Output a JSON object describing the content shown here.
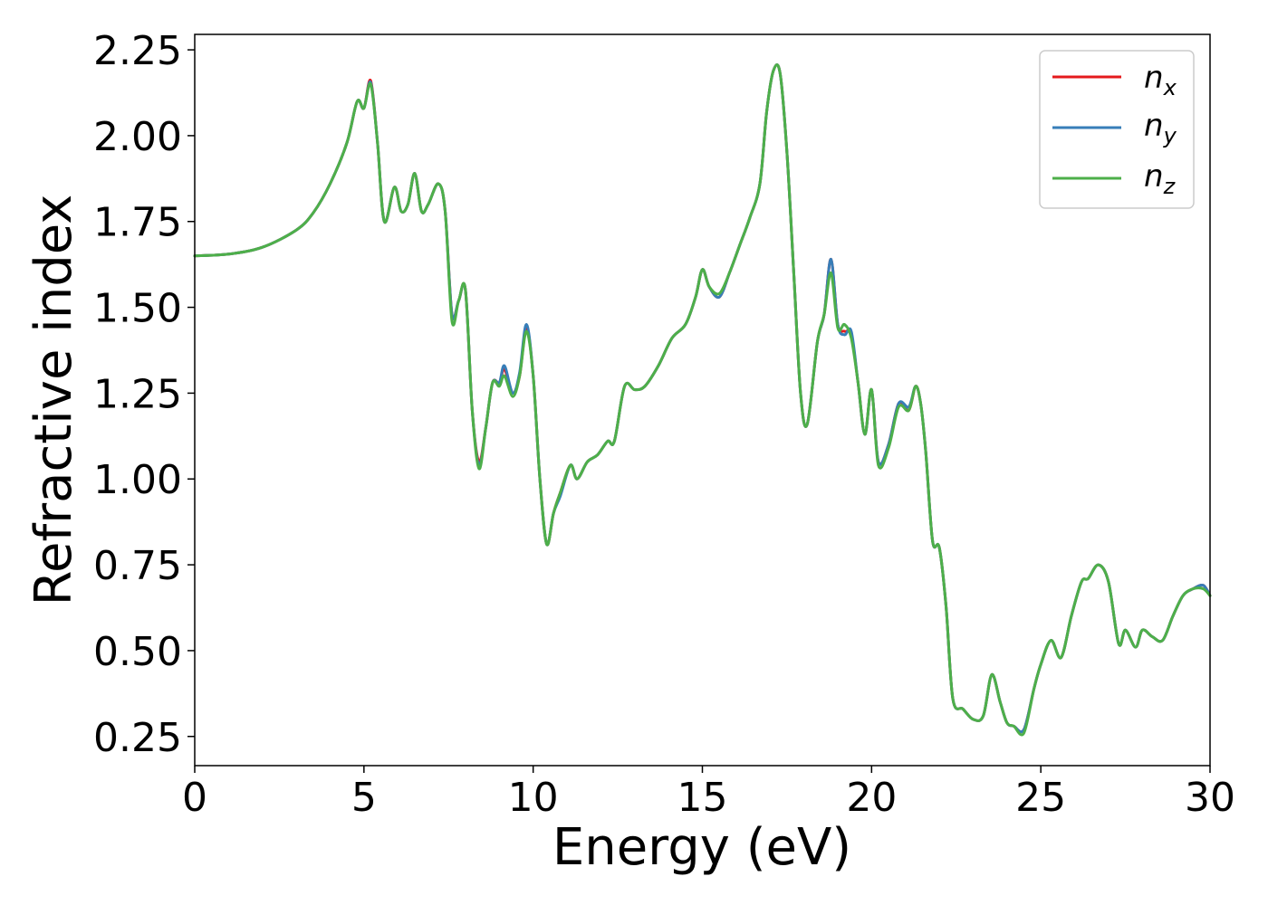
{
  "chart_data": {
    "type": "line",
    "xlabel": "Energy (eV)",
    "ylabel": "Refractive index",
    "xlim": [
      0,
      30
    ],
    "ylim": [
      0.165,
      2.295
    ],
    "xticks": [
      0,
      5,
      10,
      15,
      20,
      25,
      30
    ],
    "xtick_labels": [
      "0",
      "5",
      "10",
      "15",
      "20",
      "25",
      "30"
    ],
    "yticks": [
      0.25,
      0.5,
      0.75,
      1.0,
      1.25,
      1.5,
      1.75,
      2.0,
      2.25
    ],
    "ytick_labels": [
      "0.25",
      "0.50",
      "0.75",
      "1.00",
      "1.25",
      "1.50",
      "1.75",
      "2.00",
      "2.25"
    ],
    "grid": false,
    "legend_position": "top-right",
    "x": [
      0,
      1,
      2,
      3,
      3.5,
      4,
      4.5,
      4.8,
      5.0,
      5.2,
      5.4,
      5.6,
      5.9,
      6.1,
      6.3,
      6.5,
      6.7,
      6.9,
      7.2,
      7.4,
      7.6,
      7.8,
      8.0,
      8.2,
      8.4,
      8.6,
      8.8,
      9.0,
      9.15,
      9.4,
      9.6,
      9.8,
      10.0,
      10.2,
      10.4,
      10.6,
      10.8,
      11.1,
      11.3,
      11.6,
      11.9,
      12.2,
      12.4,
      12.7,
      13.0,
      13.3,
      13.7,
      14.1,
      14.5,
      14.8,
      15.0,
      15.2,
      15.5,
      15.8,
      16.1,
      16.4,
      16.7,
      16.9,
      17.1,
      17.3,
      17.5,
      17.7,
      17.9,
      18.1,
      18.4,
      18.6,
      18.8,
      19.0,
      19.2,
      19.4,
      19.6,
      19.8,
      20.0,
      20.2,
      20.5,
      20.8,
      21.1,
      21.3,
      21.45,
      21.6,
      21.8,
      22.0,
      22.2,
      22.4,
      22.7,
      23.0,
      23.3,
      23.55,
      23.8,
      24.0,
      24.2,
      24.5,
      24.8,
      25.0,
      25.3,
      25.6,
      25.9,
      26.2,
      26.4,
      26.7,
      27.0,
      27.3,
      27.5,
      27.8,
      28.0,
      28.3,
      28.6,
      28.9,
      29.2,
      29.5,
      29.8,
      30
    ],
    "series": [
      {
        "name": "n_x",
        "color": "#e41a1c",
        "values": [
          1.65,
          1.655,
          1.675,
          1.725,
          1.775,
          1.86,
          1.98,
          2.1,
          2.08,
          2.16,
          1.98,
          1.75,
          1.85,
          1.78,
          1.8,
          1.89,
          1.78,
          1.8,
          1.86,
          1.78,
          1.48,
          1.52,
          1.55,
          1.2,
          1.05,
          1.15,
          1.28,
          1.28,
          1.32,
          1.25,
          1.3,
          1.44,
          1.3,
          1.0,
          0.81,
          0.9,
          0.96,
          1.04,
          1.0,
          1.05,
          1.07,
          1.11,
          1.11,
          1.27,
          1.26,
          1.27,
          1.33,
          1.41,
          1.45,
          1.53,
          1.61,
          1.56,
          1.53,
          1.6,
          1.68,
          1.76,
          1.86,
          2.07,
          2.19,
          2.18,
          1.95,
          1.6,
          1.25,
          1.16,
          1.4,
          1.48,
          1.64,
          1.45,
          1.43,
          1.42,
          1.28,
          1.13,
          1.26,
          1.05,
          1.1,
          1.22,
          1.2,
          1.27,
          1.22,
          1.08,
          0.82,
          0.8,
          0.63,
          0.36,
          0.33,
          0.3,
          0.31,
          0.43,
          0.35,
          0.29,
          0.28,
          0.27,
          0.39,
          0.46,
          0.53,
          0.48,
          0.6,
          0.7,
          0.71,
          0.75,
          0.7,
          0.52,
          0.56,
          0.51,
          0.56,
          0.54,
          0.53,
          0.6,
          0.66,
          0.68,
          0.69,
          0.66
        ]
      },
      {
        "name": "n_y",
        "color": "#377eb8",
        "values": [
          1.65,
          1.655,
          1.675,
          1.725,
          1.775,
          1.86,
          1.98,
          2.1,
          2.08,
          2.155,
          1.98,
          1.75,
          1.85,
          1.78,
          1.8,
          1.89,
          1.78,
          1.8,
          1.86,
          1.78,
          1.48,
          1.52,
          1.55,
          1.2,
          1.04,
          1.15,
          1.28,
          1.28,
          1.33,
          1.25,
          1.31,
          1.45,
          1.3,
          1.0,
          0.81,
          0.9,
          0.95,
          1.04,
          1.0,
          1.05,
          1.07,
          1.11,
          1.11,
          1.27,
          1.26,
          1.27,
          1.33,
          1.41,
          1.45,
          1.53,
          1.61,
          1.56,
          1.53,
          1.6,
          1.68,
          1.76,
          1.86,
          2.07,
          2.19,
          2.18,
          1.95,
          1.6,
          1.25,
          1.16,
          1.4,
          1.48,
          1.64,
          1.45,
          1.42,
          1.43,
          1.28,
          1.13,
          1.26,
          1.05,
          1.1,
          1.22,
          1.21,
          1.27,
          1.22,
          1.08,
          0.82,
          0.8,
          0.63,
          0.36,
          0.33,
          0.3,
          0.31,
          0.43,
          0.35,
          0.29,
          0.28,
          0.27,
          0.39,
          0.46,
          0.53,
          0.48,
          0.6,
          0.7,
          0.71,
          0.75,
          0.7,
          0.52,
          0.56,
          0.51,
          0.56,
          0.54,
          0.53,
          0.6,
          0.66,
          0.68,
          0.69,
          0.66
        ]
      },
      {
        "name": "n_z",
        "color": "#4daf4a",
        "values": [
          1.65,
          1.655,
          1.675,
          1.725,
          1.775,
          1.86,
          1.98,
          2.1,
          2.08,
          2.15,
          1.98,
          1.75,
          1.85,
          1.78,
          1.8,
          1.89,
          1.78,
          1.8,
          1.86,
          1.78,
          1.46,
          1.52,
          1.55,
          1.2,
          1.03,
          1.15,
          1.28,
          1.27,
          1.3,
          1.24,
          1.3,
          1.43,
          1.3,
          1.0,
          0.81,
          0.9,
          0.96,
          1.04,
          1.0,
          1.05,
          1.07,
          1.11,
          1.11,
          1.27,
          1.26,
          1.27,
          1.33,
          1.41,
          1.45,
          1.53,
          1.61,
          1.56,
          1.54,
          1.6,
          1.68,
          1.76,
          1.86,
          2.07,
          2.19,
          2.18,
          1.95,
          1.6,
          1.25,
          1.16,
          1.4,
          1.48,
          1.6,
          1.44,
          1.45,
          1.41,
          1.28,
          1.13,
          1.26,
          1.04,
          1.09,
          1.21,
          1.2,
          1.27,
          1.22,
          1.08,
          0.82,
          0.8,
          0.63,
          0.36,
          0.33,
          0.3,
          0.31,
          0.43,
          0.35,
          0.29,
          0.28,
          0.26,
          0.39,
          0.46,
          0.53,
          0.48,
          0.6,
          0.7,
          0.71,
          0.75,
          0.7,
          0.52,
          0.56,
          0.51,
          0.56,
          0.54,
          0.53,
          0.6,
          0.66,
          0.68,
          0.68,
          0.66
        ]
      }
    ],
    "legend": [
      {
        "base": "n",
        "sub": "x"
      },
      {
        "base": "n",
        "sub": "y"
      },
      {
        "base": "n",
        "sub": "z"
      }
    ]
  }
}
